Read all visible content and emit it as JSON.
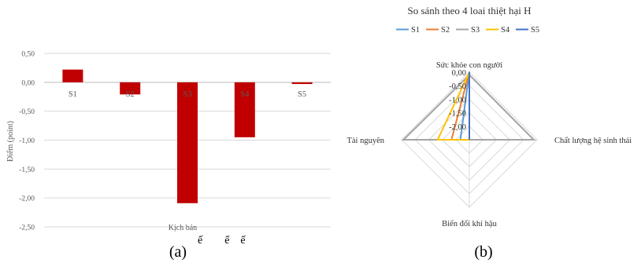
{
  "panel_a": {
    "label": "(a)",
    "caption_tail": "ế        ể    ế"
  },
  "panel_b": {
    "label": "(b)"
  },
  "chart_data": [
    {
      "type": "bar",
      "title": "",
      "xlabel": "Kịch bản",
      "ylabel": "Điểm (point)",
      "categories": [
        "S1",
        "S2",
        "S3",
        "S4",
        "S5"
      ],
      "values": [
        0.22,
        -0.21,
        -2.09,
        -0.95,
        -0.03
      ],
      "ylim": [
        -2.5,
        0.5
      ],
      "yticks": [
        "0,50",
        "0,00",
        "-0,50",
        "-1,00",
        "-1,50",
        "-2,00",
        "-2,50"
      ],
      "ytick_values": [
        0.5,
        0.0,
        -0.5,
        -1.0,
        -1.5,
        -2.0,
        -2.5
      ],
      "grid": true,
      "bar_color": "#c00000"
    },
    {
      "type": "radar",
      "title": "So sánh theo 4 loai thiệt hại H",
      "axes": [
        "Sức khỏe con người",
        "Chất lượng hệ sinh thái",
        "Biến đổi khí hậu",
        "Tài nguyên"
      ],
      "range": [
        0.0,
        -2.5
      ],
      "ticks": [
        "0,00",
        "-0,50",
        "-1,00",
        "-1,50",
        "-2,00"
      ],
      "tick_values": [
        0.0,
        -0.5,
        -1.0,
        -1.5,
        -2.0
      ],
      "legend_position": "top",
      "series": [
        {
          "name": "S1",
          "color": "#5b9bd5",
          "values": [
            0.02,
            -2.5,
            -2.5,
            -2.17
          ]
        },
        {
          "name": "S2",
          "color": "#ed7d31",
          "values": [
            0.0,
            -2.5,
            -2.5,
            -1.84
          ]
        },
        {
          "name": "S3",
          "color": "#a5a5a5",
          "values": [
            -0.1,
            -0.12,
            -2.5,
            -0.07
          ]
        },
        {
          "name": "S4",
          "color": "#ffc000",
          "values": [
            0.0,
            -2.5,
            -2.5,
            -1.33
          ]
        },
        {
          "name": "S5",
          "color": "#4472c4",
          "values": [
            0.01,
            -2.5,
            -2.5,
            -2.52
          ]
        }
      ]
    }
  ]
}
